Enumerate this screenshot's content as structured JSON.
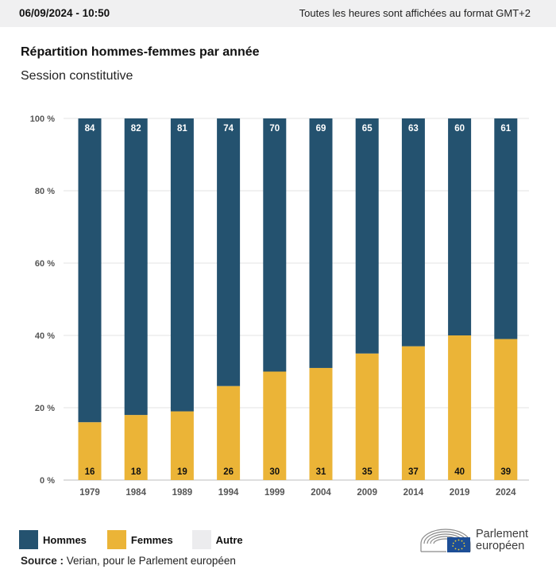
{
  "header": {
    "timestamp": "06/09/2024 - 10:50",
    "timezone_note": "Toutes les heures sont affichées au format GMT+2"
  },
  "title": "Répartition hommes-femmes par année",
  "subtitle": "Session constitutive",
  "colors": {
    "hommes": "#24526f",
    "femmes": "#ebb437",
    "autre": "#ececee",
    "grid": "#e3e3e3"
  },
  "chart_data": {
    "type": "bar",
    "stacked": true,
    "categories": [
      "1979",
      "1984",
      "1989",
      "1994",
      "1999",
      "2004",
      "2009",
      "2014",
      "2019",
      "2024"
    ],
    "series": [
      {
        "name": "Femmes",
        "values": [
          16,
          18,
          19,
          26,
          30,
          31,
          35,
          37,
          40,
          39
        ]
      },
      {
        "name": "Hommes",
        "values": [
          84,
          82,
          81,
          74,
          70,
          69,
          65,
          63,
          60,
          61
        ]
      }
    ],
    "ylim": [
      0,
      100
    ],
    "yticks": [
      "0 %",
      "20 %",
      "40 %",
      "60 %",
      "80 %",
      "100 %"
    ],
    "grid": true
  },
  "legend": {
    "items": [
      {
        "label": "Hommes",
        "icon": "hommes-swatch"
      },
      {
        "label": "Femmes",
        "icon": "femmes-swatch"
      },
      {
        "label": "Autre",
        "icon": "autre-swatch"
      }
    ]
  },
  "source": {
    "prefix": "Source :",
    "text": "Verian, pour le Parlement européen"
  },
  "logo": {
    "line1": "Parlement",
    "line2": "européen"
  }
}
